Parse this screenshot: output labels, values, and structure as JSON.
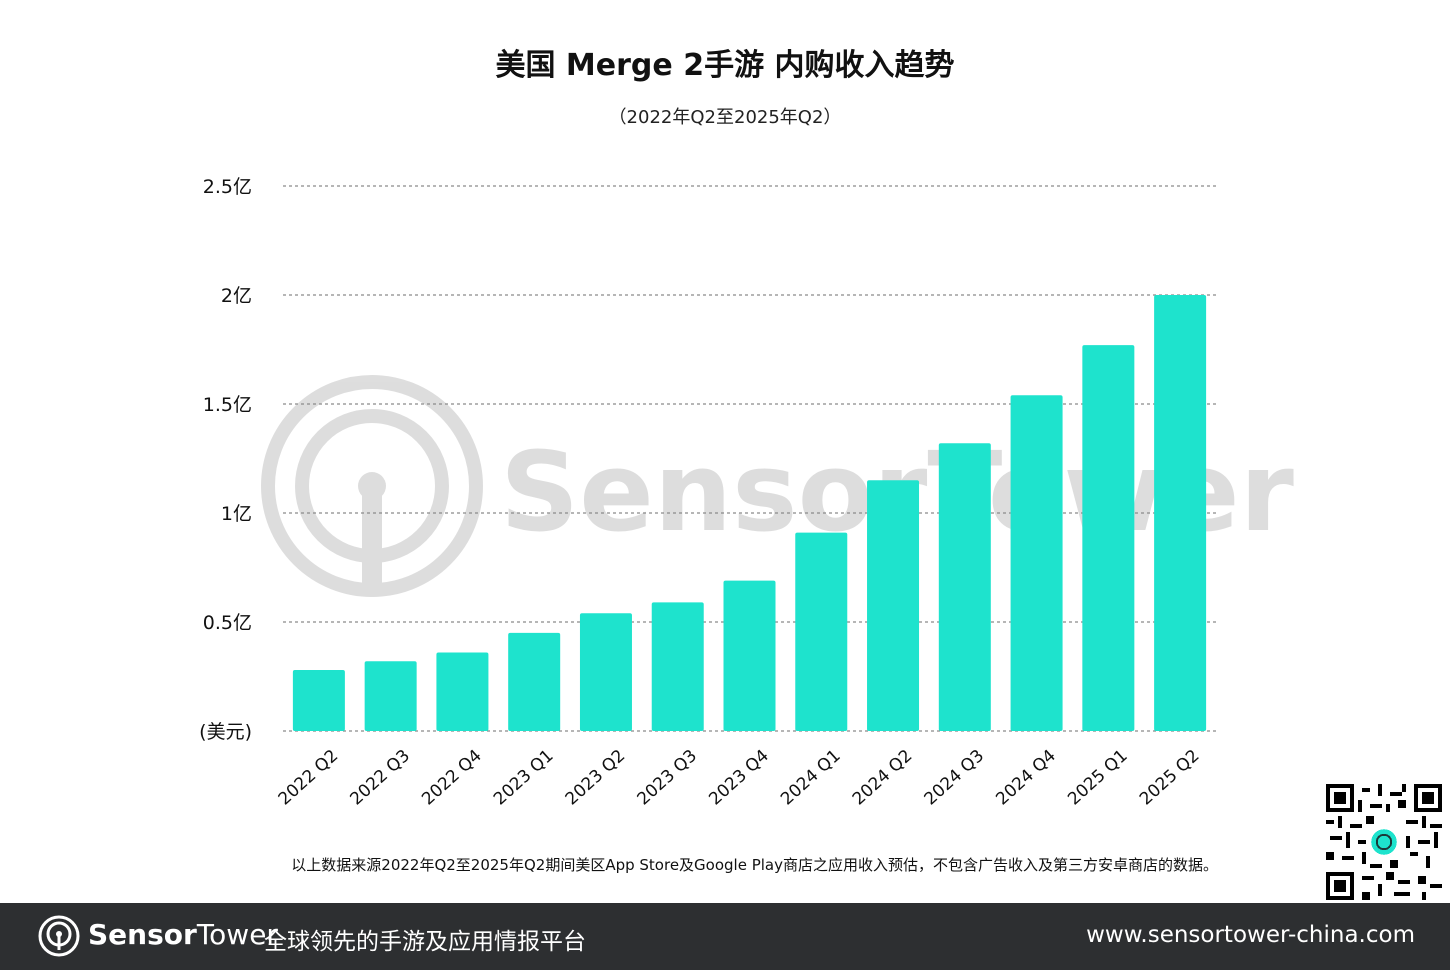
{
  "header": {
    "title": "美国 Merge 2手游 内购收入趋势",
    "subtitle": "（2022年Q2至2025年Q2）"
  },
  "chart_data": {
    "type": "bar",
    "title": "美国 Merge 2手游 内购收入趋势",
    "subtitle": "（2022年Q2至2025年Q2）",
    "categories": [
      "2022 Q2",
      "2022 Q3",
      "2022 Q4",
      "2023 Q1",
      "2023 Q2",
      "2023 Q3",
      "2023 Q4",
      "2024 Q1",
      "2024 Q2",
      "2024 Q3",
      "2024 Q4",
      "2025 Q1",
      "2025 Q2"
    ],
    "values": [
      0.28,
      0.32,
      0.36,
      0.45,
      0.54,
      0.59,
      0.69,
      0.91,
      1.15,
      1.32,
      1.54,
      1.77,
      2.0
    ],
    "ylim": [
      0,
      2.5
    ],
    "yticks": [
      0,
      0.5,
      1,
      1.5,
      2,
      2.5
    ],
    "ytick_labels": [
      "(美元)",
      "0.5亿",
      "1亿",
      "1.5亿",
      "2亿",
      "2.5亿"
    ],
    "xlabel": "",
    "ylabel": "",
    "grid": "horizontal dashed",
    "bar_color": "#1ee3cd",
    "watermark": "SensorTower"
  },
  "footnote": "以上数据来源2022年Q2至2025年Q2期间美区App Store及Google Play商店之应用收入预估，不包含广告收入及第三方安卓商店的数据。",
  "footer": {
    "brand_bold": "Sensor",
    "brand_light": "Tower",
    "slogan": "全球领先的手游及应用情报平台",
    "url": "www.sensortower-china.com",
    "background": "#2d2f31"
  }
}
